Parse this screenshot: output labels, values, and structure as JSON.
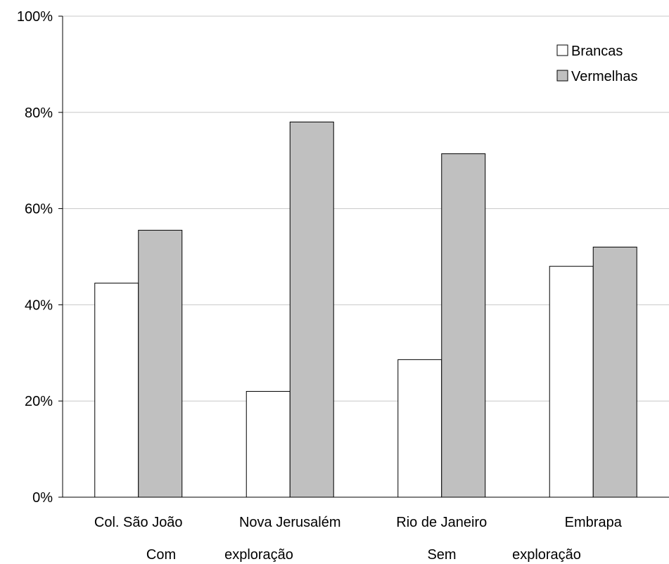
{
  "chart_data": {
    "type": "bar",
    "categories": [
      "Col. São João",
      "Nova Jerusalém",
      "Rio de Janeiro",
      "Embrapa"
    ],
    "series": [
      {
        "name": "Brancas",
        "values": [
          44.5,
          22,
          28.6,
          48
        ],
        "color": "#ffffff"
      },
      {
        "name": "Vermelhas",
        "values": [
          55.5,
          78,
          71.4,
          52
        ],
        "color": "#c0c0c0"
      }
    ],
    "ylim": [
      0,
      100
    ],
    "yticks": [
      "0%",
      "20%",
      "40%",
      "60%",
      "80%",
      "100%"
    ],
    "grid": true,
    "legend_position": "top-right",
    "group_labels": [
      {
        "words": [
          "Com",
          "exploração"
        ]
      },
      {
        "words": [
          "Sem",
          "exploração"
        ]
      }
    ]
  }
}
